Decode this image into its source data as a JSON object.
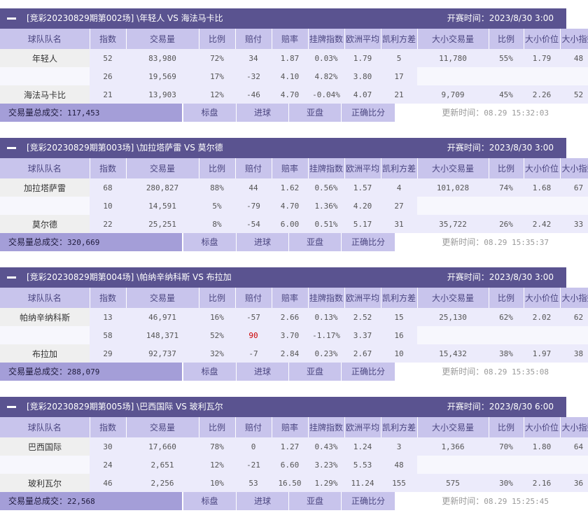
{
  "colors": {
    "header_bg": "#5a5390",
    "subheader_bg": "#c8c4ec",
    "total_bg": "#a49ed8",
    "cell_light": "#ecebfb",
    "highlight": "#cc0000"
  },
  "columns": [
    "球队队名",
    "指数",
    "交易量",
    "比例",
    "赔付",
    "赔率",
    "挂牌指数",
    "欧洲平均",
    "凯利方差",
    "大小交易量",
    "比例",
    "大小价位",
    "大小指数"
  ],
  "footer_buttons": [
    "标盘",
    "进球",
    "亚盘",
    "正确比分"
  ],
  "labels": {
    "kickoff": "开赛时间：",
    "total": "交易量总成交：",
    "updated": "更新时间："
  },
  "matches": [
    {
      "title": "[竞彩20230829期第002场] \\年轻人 VS 海法马卡比",
      "kickoff": "2023/8/30 3:00",
      "rows": [
        [
          "年轻人",
          "52",
          "83,980",
          "72%",
          "34",
          "1.87",
          "0.03%",
          "1.79",
          "5",
          "11,780",
          "55%",
          "1.79",
          "48"
        ],
        [
          "",
          "26",
          "19,569",
          "17%",
          "-32",
          "4.10",
          "4.82%",
          "3.80",
          "17",
          "",
          "",
          "",
          ""
        ],
        [
          "海法马卡比",
          "21",
          "13,903",
          "12%",
          "-46",
          "4.70",
          "-0.04%",
          "4.07",
          "21",
          "9,709",
          "45%",
          "2.26",
          "52"
        ]
      ],
      "total": "117,453",
      "updated": "08.29 15:32:03"
    },
    {
      "title": "[竞彩20230829期第003场] \\加拉塔萨雷 VS 莫尔德",
      "kickoff": "2023/8/30 3:00",
      "rows": [
        [
          "加拉塔萨雷",
          "68",
          "280,827",
          "88%",
          "44",
          "1.62",
          "0.56%",
          "1.57",
          "4",
          "101,028",
          "74%",
          "1.68",
          "67"
        ],
        [
          "",
          "10",
          "14,591",
          "5%",
          "-79",
          "4.70",
          "1.36%",
          "4.20",
          "27",
          "",
          "",
          "",
          ""
        ],
        [
          "莫尔德",
          "22",
          "25,251",
          "8%",
          "-54",
          "6.00",
          "0.51%",
          "5.17",
          "31",
          "35,722",
          "26%",
          "2.42",
          "33"
        ]
      ],
      "total": "320,669",
      "updated": "08.29 15:35:37"
    },
    {
      "title": "[竞彩20230829期第004场] \\帕纳辛纳科斯 VS 布拉加",
      "kickoff": "2023/8/30 3:00",
      "rows": [
        [
          "帕纳辛纳科斯",
          "13",
          "46,971",
          "16%",
          "-57",
          "2.66",
          "0.13%",
          "2.52",
          "15",
          "25,130",
          "62%",
          "2.02",
          "62"
        ],
        [
          "",
          "58",
          "148,371",
          "52%",
          "90",
          "3.70",
          "-1.17%",
          "3.37",
          "16",
          "",
          "",
          "",
          ""
        ],
        [
          "布拉加",
          "29",
          "92,737",
          "32%",
          "-7",
          "2.84",
          "0.23%",
          "2.67",
          "10",
          "15,432",
          "38%",
          "1.97",
          "38"
        ]
      ],
      "total": "288,079",
      "updated": "08.29 15:35:08"
    },
    {
      "title": "[竞彩20230829期第005场] \\巴西国际 VS 玻利瓦尔",
      "kickoff": "2023/8/30 6:00",
      "rows": [
        [
          "巴西国际",
          "30",
          "17,660",
          "78%",
          "0",
          "1.27",
          "0.43%",
          "1.24",
          "3",
          "1,366",
          "70%",
          "1.80",
          "64"
        ],
        [
          "",
          "24",
          "2,651",
          "12%",
          "-21",
          "6.60",
          "3.23%",
          "5.53",
          "48",
          "",
          "",
          "",
          ""
        ],
        [
          "玻利瓦尔",
          "46",
          "2,256",
          "10%",
          "53",
          "16.50",
          "1.29%",
          "11.24",
          "155",
          "575",
          "30%",
          "2.16",
          "36"
        ]
      ],
      "total": "22,568",
      "updated": "08.29 15:25:45"
    }
  ]
}
